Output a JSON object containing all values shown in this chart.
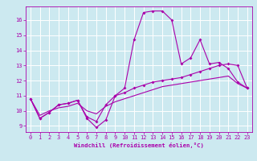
{
  "xlabel": "Windchill (Refroidissement éolien,°C)",
  "bg_color": "#cce9f0",
  "grid_color": "#ffffff",
  "line_color": "#aa00aa",
  "xlim": [
    -0.5,
    23.5
  ],
  "ylim": [
    8.6,
    16.9
  ],
  "yticks": [
    9,
    10,
    11,
    12,
    13,
    14,
    15,
    16
  ],
  "xticks": [
    0,
    1,
    2,
    3,
    4,
    5,
    6,
    7,
    8,
    9,
    10,
    11,
    12,
    13,
    14,
    15,
    16,
    17,
    18,
    19,
    20,
    21,
    22,
    23
  ],
  "series1_x": [
    0,
    1,
    2,
    3,
    4,
    5,
    6,
    7,
    8,
    9,
    10,
    11,
    12,
    13,
    14,
    15,
    16,
    17,
    18,
    19,
    20,
    21,
    22,
    23
  ],
  "series1_y": [
    10.8,
    9.5,
    9.9,
    10.4,
    10.5,
    10.7,
    9.5,
    8.9,
    9.4,
    11.0,
    11.5,
    14.7,
    16.5,
    16.6,
    16.6,
    16.0,
    13.1,
    13.5,
    14.7,
    13.1,
    13.2,
    12.8,
    11.9,
    11.5
  ],
  "series2_x": [
    0,
    1,
    2,
    3,
    4,
    5,
    6,
    7,
    8,
    9,
    10,
    11,
    12,
    13,
    14,
    15,
    16,
    17,
    18,
    19,
    20,
    21,
    22,
    23
  ],
  "series2_y": [
    10.8,
    9.5,
    9.9,
    10.4,
    10.5,
    10.7,
    9.6,
    9.3,
    10.4,
    11.0,
    11.2,
    11.5,
    11.7,
    11.9,
    12.0,
    12.1,
    12.2,
    12.4,
    12.6,
    12.8,
    13.0,
    13.1,
    13.0,
    11.5
  ],
  "series3_x": [
    0,
    1,
    2,
    3,
    4,
    5,
    6,
    7,
    8,
    9,
    10,
    11,
    12,
    13,
    14,
    15,
    16,
    17,
    18,
    19,
    20,
    21,
    22,
    23
  ],
  "series3_y": [
    10.8,
    9.7,
    10.0,
    10.2,
    10.3,
    10.5,
    10.0,
    9.8,
    10.3,
    10.6,
    10.8,
    11.0,
    11.2,
    11.4,
    11.6,
    11.7,
    11.8,
    11.9,
    12.0,
    12.1,
    12.2,
    12.3,
    11.8,
    11.5
  ]
}
